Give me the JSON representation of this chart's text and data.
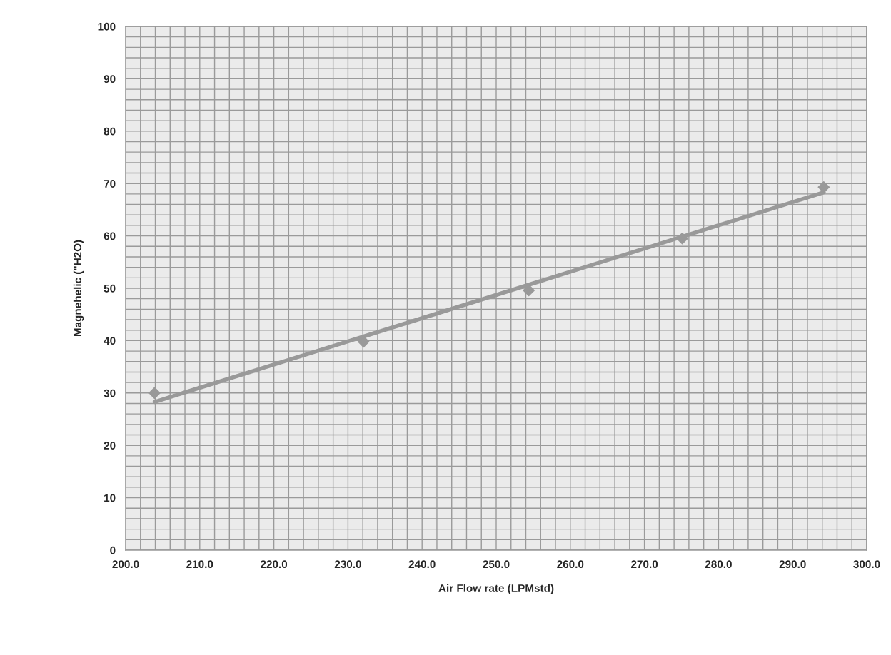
{
  "chart_data": {
    "type": "scatter",
    "xlabel": "Air Flow rate (LPMstd)",
    "ylabel": "Magnehelic (\"H2O)",
    "x": [
      203.9,
      232.1,
      254.4,
      275.1,
      294.2
    ],
    "series": [
      {
        "color": "#999999",
        "marker": "diamond",
        "values": [
          30.0,
          39.8,
          49.6,
          59.5,
          69.3
        ]
      },
      {
        "type": "line",
        "color": "#999999",
        "x": [
          203.9,
          294.2
        ],
        "values": [
          28.3,
          68.3
        ],
        "marker": "none",
        "line_style": "solid"
      }
    ],
    "xlim": [
      200,
      300
    ],
    "ylim": [
      0,
      100
    ],
    "xticks": [
      {
        "value": 200,
        "label": "200.0"
      },
      {
        "value": 202,
        "label": null
      },
      {
        "value": 204,
        "label": null
      },
      {
        "value": 206,
        "label": null
      },
      {
        "value": 208,
        "label": null
      },
      {
        "value": 210,
        "label": "210.0"
      },
      {
        "value": 212,
        "label": null
      },
      {
        "value": 214,
        "label": null
      },
      {
        "value": 216,
        "label": null
      },
      {
        "value": 218,
        "label": null
      },
      {
        "value": 220,
        "label": "220.0"
      },
      {
        "value": 222,
        "label": null
      },
      {
        "value": 224,
        "label": null
      },
      {
        "value": 226,
        "label": null
      },
      {
        "value": 228,
        "label": null
      },
      {
        "value": 230,
        "label": "230.0"
      },
      {
        "value": 232,
        "label": null
      },
      {
        "value": 234,
        "label": null
      },
      {
        "value": 236,
        "label": null
      },
      {
        "value": 238,
        "label": null
      },
      {
        "value": 240,
        "label": "240.0"
      },
      {
        "value": 242,
        "label": null
      },
      {
        "value": 244,
        "label": null
      },
      {
        "value": 246,
        "label": null
      },
      {
        "value": 248,
        "label": null
      },
      {
        "value": 250,
        "label": "250.0"
      },
      {
        "value": 252,
        "label": null
      },
      {
        "value": 254,
        "label": null
      },
      {
        "value": 256,
        "label": null
      },
      {
        "value": 258,
        "label": null
      },
      {
        "value": 260,
        "label": "260.0"
      },
      {
        "value": 262,
        "label": null
      },
      {
        "value": 264,
        "label": null
      },
      {
        "value": 266,
        "label": null
      },
      {
        "value": 268,
        "label": null
      },
      {
        "value": 270,
        "label": "270.0"
      },
      {
        "value": 272,
        "label": null
      },
      {
        "value": 274,
        "label": null
      },
      {
        "value": 276,
        "label": null
      },
      {
        "value": 278,
        "label": null
      },
      {
        "value": 280,
        "label": "280.0"
      },
      {
        "value": 282,
        "label": null
      },
      {
        "value": 284,
        "label": null
      },
      {
        "value": 286,
        "label": null
      },
      {
        "value": 288,
        "label": null
      },
      {
        "value": 290,
        "label": "290.0"
      },
      {
        "value": 292,
        "label": null
      },
      {
        "value": 294,
        "label": null
      },
      {
        "value": 296,
        "label": null
      },
      {
        "value": 298,
        "label": null
      },
      {
        "value": 300,
        "label": "300.0"
      }
    ],
    "yticks": [
      0,
      {
        "value": 2,
        "label": null
      },
      {
        "value": 4,
        "label": null
      },
      {
        "value": 6,
        "label": null
      },
      {
        "value": 8,
        "label": null
      },
      10,
      {
        "value": 12,
        "label": null
      },
      {
        "value": 14,
        "label": null
      },
      {
        "value": 16,
        "label": null
      },
      {
        "value": 18,
        "label": null
      },
      20,
      {
        "value": 22,
        "label": null
      },
      {
        "value": 24,
        "label": null
      },
      {
        "value": 26,
        "label": null
      },
      {
        "value": 28,
        "label": null
      },
      30,
      {
        "value": 32,
        "label": null
      },
      {
        "value": 34,
        "label": null
      },
      {
        "value": 36,
        "label": null
      },
      {
        "value": 38,
        "label": null
      },
      40,
      {
        "value": 42,
        "label": null
      },
      {
        "value": 44,
        "label": null
      },
      {
        "value": 46,
        "label": null
      },
      {
        "value": 48,
        "label": null
      },
      50,
      {
        "value": 52,
        "label": null
      },
      {
        "value": 54,
        "label": null
      },
      {
        "value": 56,
        "label": null
      },
      {
        "value": 58,
        "label": null
      },
      60,
      {
        "value": 62,
        "label": null
      },
      {
        "value": 64,
        "label": null
      },
      {
        "value": 66,
        "label": null
      },
      {
        "value": 68,
        "label": null
      },
      70,
      {
        "value": 72,
        "label": null
      },
      {
        "value": 74,
        "label": null
      },
      {
        "value": 76,
        "label": null
      },
      {
        "value": 78,
        "label": null
      },
      80,
      {
        "value": 82,
        "label": null
      },
      {
        "value": 84,
        "label": null
      },
      {
        "value": 86,
        "label": null
      },
      {
        "value": 88,
        "label": null
      },
      90,
      {
        "value": 92,
        "label": null
      },
      {
        "value": 94,
        "label": null
      },
      {
        "value": 96,
        "label": null
      },
      {
        "value": 98,
        "label": null
      },
      100
    ],
    "grid": true,
    "legend": false
  }
}
